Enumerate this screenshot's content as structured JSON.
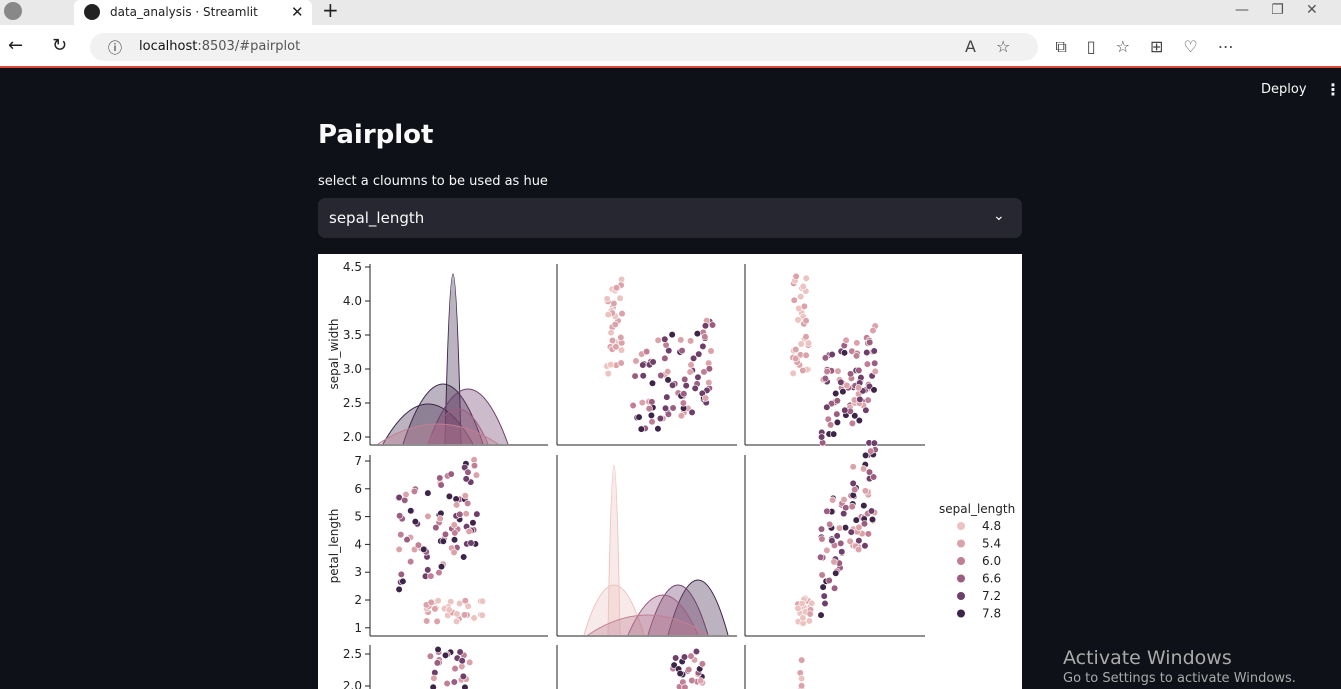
{
  "browser": {
    "tab_title": "data_analysis · Streamlit",
    "url_host": "localhost",
    "url_rest": ":8503/#pairplot"
  },
  "app": {
    "deploy": "Deploy",
    "title": "Pairplot",
    "select_label": "select a cloumns to be used as hue",
    "select_value": "sepal_length"
  },
  "pairplot": {
    "row_labels": [
      "sepal_width",
      "petal_length"
    ],
    "row_ticks": [
      [
        "4.5",
        "4.0",
        "3.5",
        "3.0",
        "2.5",
        "2.0"
      ],
      [
        "7",
        "6",
        "5",
        "4",
        "3",
        "2",
        "1"
      ],
      [
        "2.5",
        "2.0"
      ]
    ],
    "legend": {
      "title": "sepal_length",
      "entries": [
        "4.8",
        "5.4",
        "6.0",
        "6.6",
        "7.2",
        "7.8"
      ]
    }
  },
  "watermark": {
    "title": "Activate Windows",
    "subtitle": "Go to Settings to activate Windows."
  }
}
